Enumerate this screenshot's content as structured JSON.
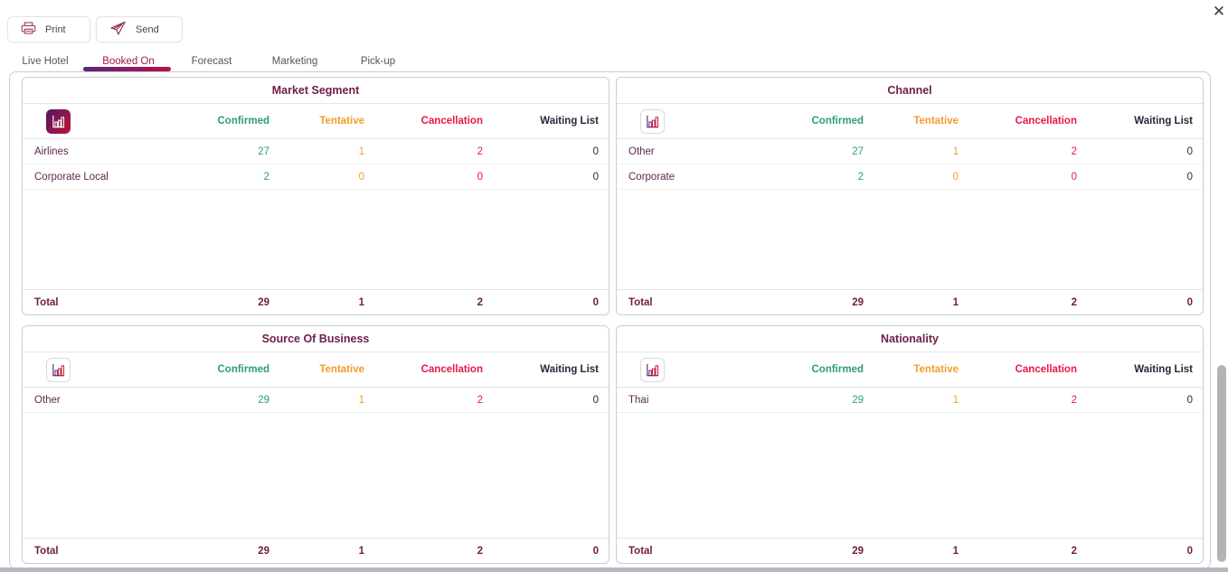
{
  "window": {
    "close_glyph": "✕"
  },
  "toolbar": {
    "print_label": "Print",
    "send_label": "Send"
  },
  "tabs": [
    {
      "label": "Live Hotel",
      "active": false
    },
    {
      "label": "Booked On",
      "active": true
    },
    {
      "label": "Forecast",
      "active": false
    },
    {
      "label": "Marketing",
      "active": false
    },
    {
      "label": "Pick-up",
      "active": false
    }
  ],
  "columns": [
    "Confirmed",
    "Tentative",
    "Cancellation",
    "Waiting List"
  ],
  "colors": {
    "confirmed": "#2f9e6e",
    "tentative": "#f09d2c",
    "cancellation": "#e8174b",
    "waiting_list": "#252a3a",
    "title_maroon": "#70204c",
    "row_label_plum": "#5e2750",
    "total_maroon": "#701c45",
    "active_tab": "#a01848",
    "tab_underline_gradient": [
      "#53297e",
      "#bc0d4b"
    ],
    "icon_gradient": [
      "#50175e",
      "#c21333"
    ]
  },
  "panels": [
    {
      "title": "Market Segment",
      "icon_active": true,
      "rows": [
        {
          "label": "Airlines",
          "values": [
            "27",
            "1",
            "2",
            "0"
          ]
        },
        {
          "label": "Corporate Local",
          "values": [
            "2",
            "0",
            "0",
            "0"
          ]
        }
      ],
      "total_label": "Total",
      "total": [
        "29",
        "1",
        "2",
        "0"
      ]
    },
    {
      "title": "Channel",
      "icon_active": false,
      "rows": [
        {
          "label": "Other",
          "values": [
            "27",
            "1",
            "2",
            "0"
          ]
        },
        {
          "label": "Corporate",
          "values": [
            "2",
            "0",
            "0",
            "0"
          ]
        }
      ],
      "total_label": "Total",
      "total": [
        "29",
        "1",
        "2",
        "0"
      ]
    },
    {
      "title": "Source Of Business",
      "icon_active": false,
      "rows": [
        {
          "label": "Other",
          "values": [
            "29",
            "1",
            "2",
            "0"
          ]
        }
      ],
      "total_label": "Total",
      "total": [
        "29",
        "1",
        "2",
        "0"
      ]
    },
    {
      "title": "Nationality",
      "icon_active": false,
      "rows": [
        {
          "label": "Thai",
          "values": [
            "29",
            "1",
            "2",
            "0"
          ]
        }
      ],
      "total_label": "Total",
      "total": [
        "29",
        "1",
        "2",
        "0"
      ]
    }
  ]
}
